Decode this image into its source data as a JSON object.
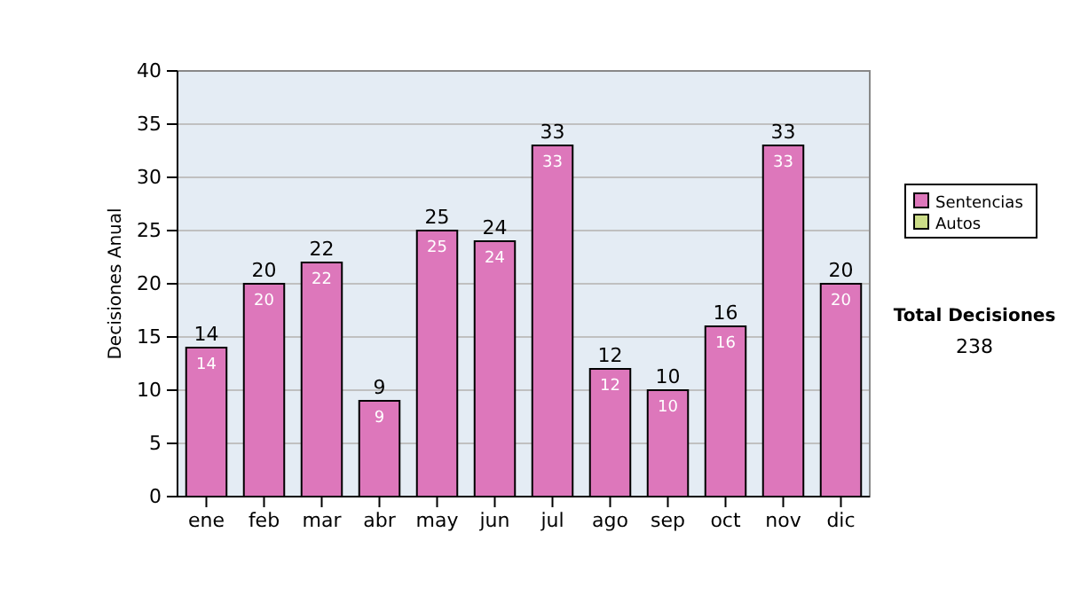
{
  "chart_data": {
    "type": "bar",
    "ylabel": "Decisiones Anual",
    "categories": [
      "ene",
      "feb",
      "mar",
      "abr",
      "may",
      "jun",
      "jul",
      "ago",
      "sep",
      "oct",
      "nov",
      "dic"
    ],
    "series": [
      {
        "name": "Sentencias",
        "color": "#dd77bb",
        "values": [
          14,
          20,
          22,
          9,
          25,
          24,
          33,
          12,
          10,
          16,
          33,
          20
        ]
      },
      {
        "name": "Autos",
        "color": "#ccdd88",
        "values": [
          null,
          null,
          null,
          null,
          null,
          null,
          null,
          null,
          null,
          null,
          null,
          null
        ]
      }
    ],
    "stacked": true,
    "totals": [
      "14",
      "20",
      "22",
      "9",
      "25",
      "24",
      "33",
      "12",
      "10",
      "16",
      "33",
      "20"
    ],
    "data_labels": true,
    "ylim": [
      0,
      40
    ],
    "yticks": [
      0,
      5,
      10,
      15,
      20,
      25,
      30,
      35,
      40
    ],
    "grid": "y",
    "legend": "right",
    "annotations": [
      "Total Decisiones",
      "238"
    ]
  }
}
